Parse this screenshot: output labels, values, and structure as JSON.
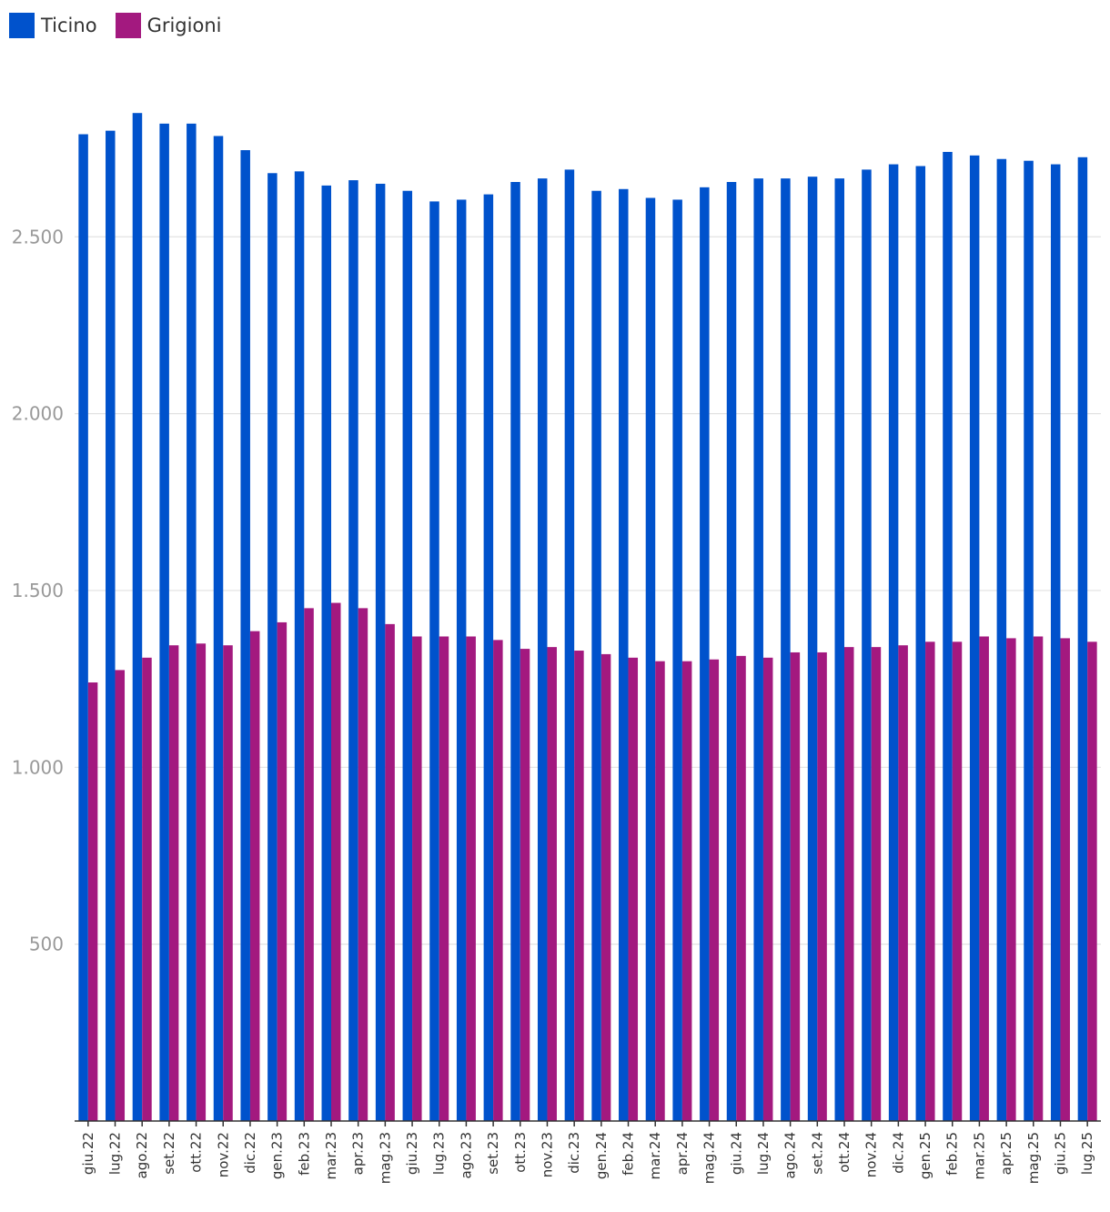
{
  "chart_data": {
    "type": "bar",
    "title": "",
    "xlabel": "",
    "ylabel": "",
    "ylim": [
      0,
      2900
    ],
    "yticks": [
      500,
      1000,
      1500,
      2000,
      2500
    ],
    "ytick_labels": [
      "500",
      "1.000",
      "1.500",
      "2.000",
      "2.500"
    ],
    "grid": true,
    "legend_position": "top-left",
    "categories": [
      "giu.22",
      "lug.22",
      "ago.22",
      "set.22",
      "ott.22",
      "nov.22",
      "dic.22",
      "gen.23",
      "feb.23",
      "mar.23",
      "apr.23",
      "mag.23",
      "giu.23",
      "lug.23",
      "ago.23",
      "set.23",
      "ott.23",
      "nov.23",
      "dic.23",
      "gen.24",
      "feb.24",
      "mar.24",
      "apr.24",
      "mag.24",
      "giu.24",
      "lug.24",
      "ago.24",
      "set.24",
      "ott.24",
      "nov.24",
      "dic.24",
      "gen.25",
      "feb.25",
      "mar.25",
      "apr.25",
      "mag.25",
      "giu.25",
      "lug.25"
    ],
    "series": [
      {
        "name": "Ticino",
        "color": "#0052cc",
        "values": [
          2790,
          2800,
          2850,
          2820,
          2820,
          2785,
          2745,
          2680,
          2685,
          2645,
          2660,
          2650,
          2630,
          2600,
          2605,
          2620,
          2655,
          2665,
          2690,
          2630,
          2635,
          2610,
          2605,
          2640,
          2655,
          2665,
          2665,
          2670,
          2665,
          2690,
          2705,
          2700,
          2740,
          2730,
          2720,
          2715,
          2705,
          2725
        ]
      },
      {
        "name": "Grigioni",
        "color": "#a3197f",
        "values": [
          1240,
          1275,
          1310,
          1345,
          1350,
          1345,
          1385,
          1410,
          1450,
          1465,
          1450,
          1405,
          1370,
          1370,
          1370,
          1360,
          1335,
          1340,
          1330,
          1320,
          1310,
          1300,
          1300,
          1305,
          1315,
          1310,
          1325,
          1325,
          1340,
          1340,
          1345,
          1355,
          1355,
          1370,
          1365,
          1370,
          1365,
          1355
        ]
      }
    ]
  }
}
